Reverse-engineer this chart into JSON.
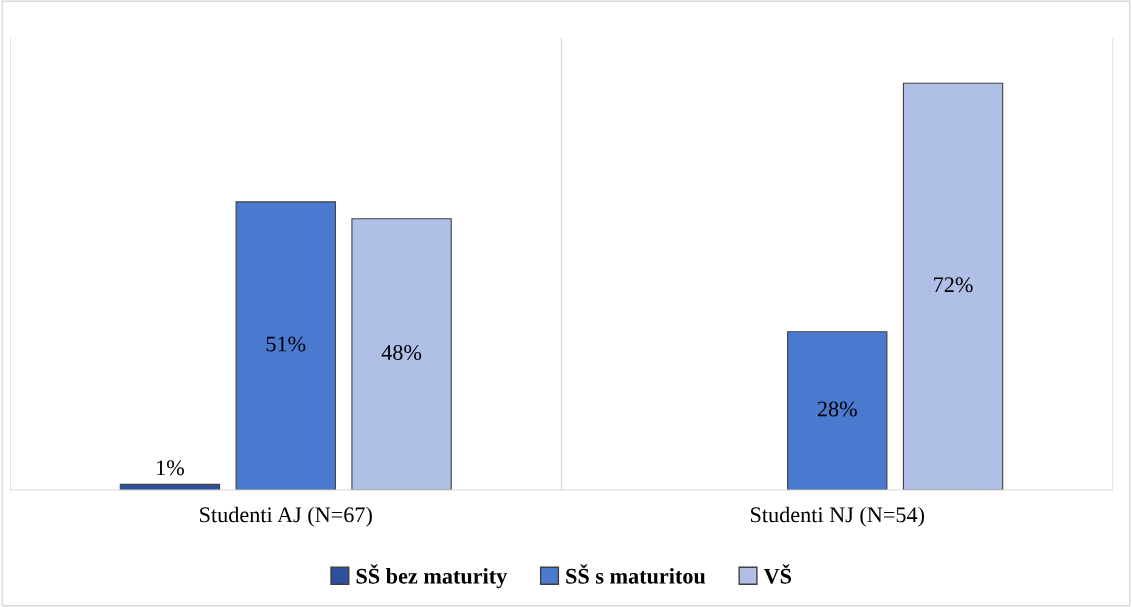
{
  "chart_data": {
    "type": "bar",
    "categories": [
      "Studenti AJ (N=67)",
      "Studenti NJ (N=54)"
    ],
    "series": [
      {
        "name": "SŠ bez maturity",
        "color": "#2e4f9e",
        "values": [
          1,
          null
        ],
        "value_labels": [
          "1%",
          null
        ]
      },
      {
        "name": "SŠ s maturitou",
        "color": "#4a7acf",
        "values": [
          51,
          28
        ],
        "value_labels": [
          "51%",
          "28%"
        ]
      },
      {
        "name": "VŠ",
        "color": "#b0bfe6",
        "values": [
          48,
          72
        ],
        "value_labels": [
          "48%",
          "72%"
        ]
      }
    ],
    "ylim": [
      0,
      80
    ],
    "tick_labels": "x",
    "grid": "x",
    "legend": "bottom"
  }
}
